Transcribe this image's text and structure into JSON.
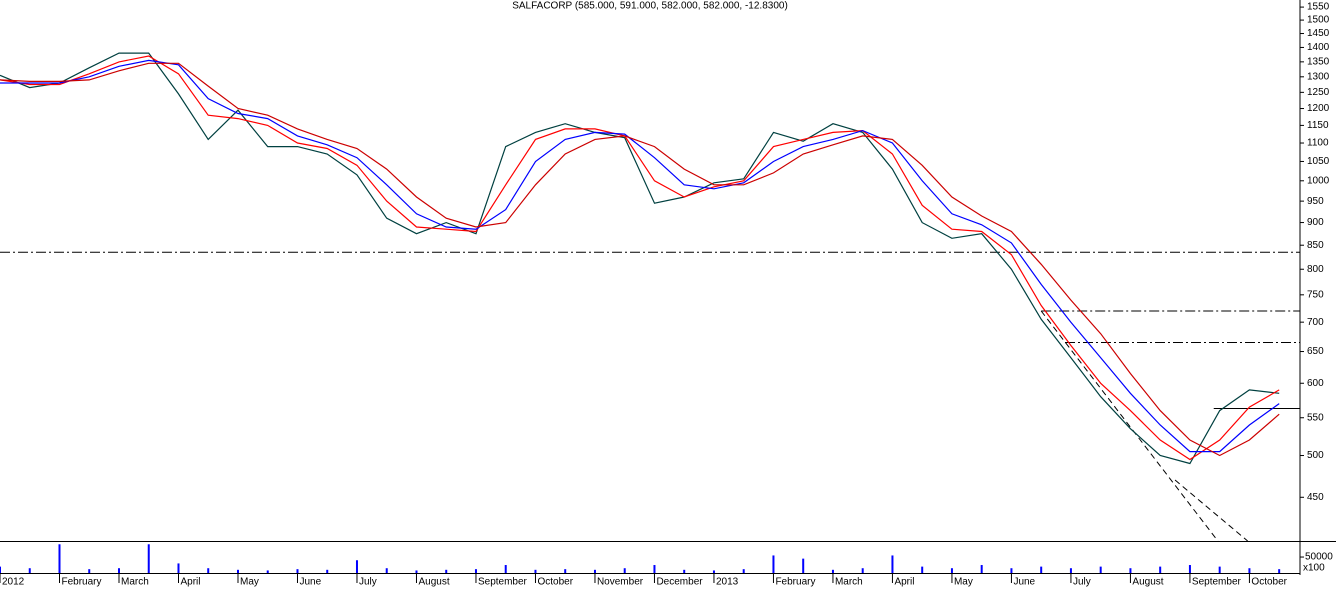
{
  "chart_data": {
    "type": "line",
    "title": "SALFACORP (585.000, 591.000, 582.000, 582.000, -12.8300)",
    "log_y": true,
    "x": [
      0,
      0.5,
      1,
      1.5,
      2,
      2.5,
      3,
      3.5,
      4,
      4.5,
      5,
      5.5,
      6,
      6.5,
      7,
      7.5,
      8,
      8.5,
      9,
      9.5,
      10,
      10.5,
      11,
      11.5,
      12,
      12.5,
      13,
      13.5,
      14,
      14.5,
      15,
      15.5,
      16,
      16.5,
      17,
      17.5,
      18,
      18.5,
      19,
      19.5,
      20,
      20.5,
      21,
      21.5
    ],
    "xlim": [
      0,
      21.85
    ],
    "xticks": [
      {
        "value": 0,
        "label": "2012"
      },
      {
        "value": 1,
        "label": "February"
      },
      {
        "value": 2,
        "label": "March"
      },
      {
        "value": 3,
        "label": "April"
      },
      {
        "value": 4,
        "label": "May"
      },
      {
        "value": 5,
        "label": "June"
      },
      {
        "value": 6,
        "label": "July"
      },
      {
        "value": 7,
        "label": "August"
      },
      {
        "value": 8,
        "label": "September"
      },
      {
        "value": 9,
        "label": "October"
      },
      {
        "value": 10,
        "label": "November"
      },
      {
        "value": 11,
        "label": "December"
      },
      {
        "value": 12,
        "label": "2013"
      },
      {
        "value": 13,
        "label": "February"
      },
      {
        "value": 14,
        "label": "March"
      },
      {
        "value": 15,
        "label": "April"
      },
      {
        "value": 16,
        "label": "May"
      },
      {
        "value": 17,
        "label": "June"
      },
      {
        "value": 18,
        "label": "July"
      },
      {
        "value": 19,
        "label": "August"
      },
      {
        "value": 20,
        "label": "September"
      },
      {
        "value": 21,
        "label": "October"
      }
    ],
    "ylim": [
      403,
      1578
    ],
    "yticks": [
      450,
      500,
      550,
      600,
      650,
      700,
      750,
      800,
      850,
      900,
      950,
      1000,
      1050,
      1100,
      1150,
      1200,
      1250,
      1300,
      1350,
      1400,
      1450,
      1500,
      1550
    ],
    "series": [
      {
        "color": "#004040",
        "values": [
          1305,
          1265,
          1280,
          1330,
          1380,
          1380,
          1245,
          1110,
          1195,
          1090,
          1090,
          1070,
          1015,
          910,
          875,
          900,
          875,
          1090,
          1130,
          1155,
          1130,
          1115,
          945,
          960,
          995,
          1005,
          1130,
          1105,
          1155,
          1130,
          1030,
          900,
          865,
          875,
          800,
          705,
          640,
          580,
          535,
          500,
          490,
          560,
          590,
          585
        ]
      },
      {
        "color": "#ff0000",
        "values": [
          1290,
          1275,
          1275,
          1310,
          1350,
          1370,
          1310,
          1180,
          1170,
          1150,
          1100,
          1085,
          1040,
          950,
          890,
          885,
          880,
          990,
          1110,
          1140,
          1140,
          1120,
          1000,
          960,
          985,
          1000,
          1090,
          1110,
          1130,
          1135,
          1070,
          940,
          885,
          880,
          830,
          730,
          660,
          600,
          560,
          520,
          495,
          520,
          565,
          590
        ]
      },
      {
        "color": "#0000ff",
        "values": [
          1280,
          1280,
          1280,
          1300,
          1335,
          1355,
          1340,
          1230,
          1185,
          1170,
          1120,
          1095,
          1060,
          990,
          920,
          890,
          885,
          930,
          1050,
          1110,
          1130,
          1125,
          1060,
          990,
          980,
          995,
          1050,
          1090,
          1110,
          1135,
          1100,
          1000,
          920,
          895,
          855,
          770,
          700,
          640,
          585,
          540,
          505,
          505,
          540,
          570
        ]
      },
      {
        "color": "#cc0000",
        "values": [
          1290,
          1285,
          1285,
          1290,
          1320,
          1345,
          1345,
          1270,
          1200,
          1180,
          1140,
          1110,
          1085,
          1030,
          960,
          910,
          890,
          900,
          990,
          1070,
          1110,
          1120,
          1090,
          1030,
          990,
          990,
          1020,
          1070,
          1095,
          1120,
          1110,
          1040,
          960,
          915,
          880,
          810,
          740,
          680,
          615,
          560,
          520,
          500,
          520,
          555
        ]
      }
    ],
    "levels": [
      {
        "value": 835,
        "from": 0,
        "style": "dashdot"
      },
      {
        "value": 720,
        "from": 17.5,
        "style": "dashdot"
      },
      {
        "value": 665,
        "from": 17.9,
        "style": "dashdot"
      },
      {
        "value": 563,
        "from": 20.4,
        "style": "solid"
      }
    ],
    "trend_lines": [
      {
        "x": [
          17.5,
          20.47
        ],
        "y": [
          720,
          403
        ]
      },
      {
        "x": [
          19.75,
          20.97
        ],
        "y": [
          470,
          403
        ]
      }
    ],
    "volume": {
      "color": "#0000ff",
      "values": [
        20000,
        15000,
        90000,
        12000,
        15000,
        90000,
        30000,
        15000,
        10000,
        8000,
        12000,
        10000,
        40000,
        15000,
        8000,
        10000,
        12000,
        25000,
        10000,
        12000,
        10000,
        15000,
        25000,
        10000,
        8000,
        12000,
        55000,
        45000,
        10000,
        15000,
        55000,
        20000,
        15000,
        25000,
        15000,
        20000,
        15000,
        20000,
        15000,
        20000,
        25000,
        20000,
        15000,
        12000
      ],
      "ylim": [
        0,
        94000
      ],
      "yticks": [
        50000
      ],
      "unit_label": "x100"
    }
  }
}
